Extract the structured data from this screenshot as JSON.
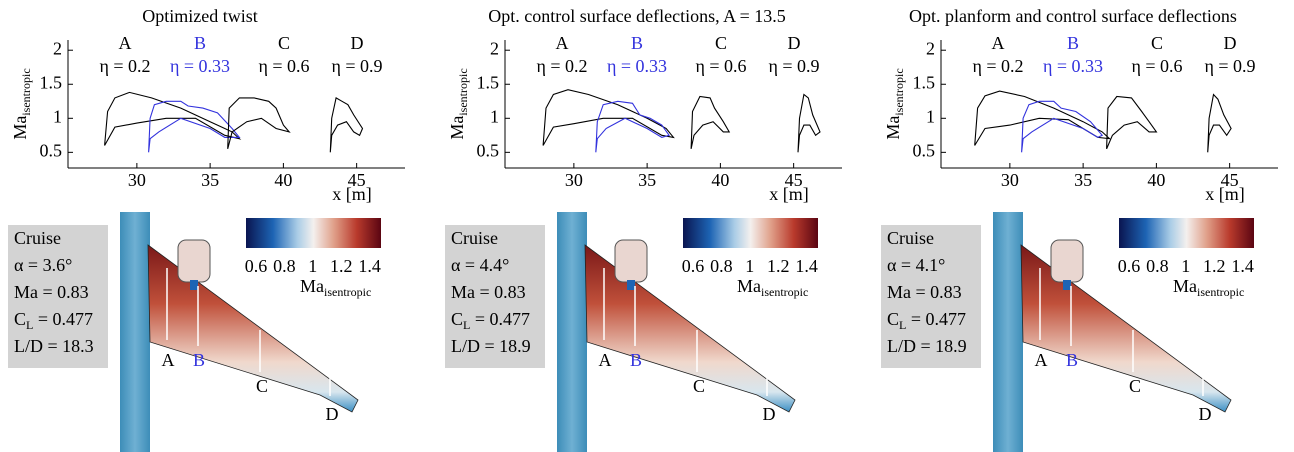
{
  "chart_data": [
    {
      "type": "line",
      "title": "Optimized twist",
      "xlabel": "x [m]",
      "ylabel": "Ma",
      "ylabel_sub": "isentropic",
      "xlim": [
        25.3,
        48.3
      ],
      "ylim": [
        0.27,
        2.15
      ],
      "xticks": [
        30,
        35,
        40,
        45
      ],
      "yticks": [
        0.5,
        1,
        1.5,
        2
      ],
      "series": [
        {
          "name": "A",
          "eta": "η = 0.2",
          "color": "#000000",
          "x": [
            27.8,
            28.0,
            28.5,
            29.5,
            31,
            33,
            35,
            36.5,
            37,
            36,
            34,
            32,
            30,
            28.5,
            27.8
          ],
          "values": [
            0.6,
            1.1,
            1.3,
            1.38,
            1.3,
            1.15,
            0.95,
            0.8,
            0.7,
            0.75,
            1.0,
            1.0,
            0.93,
            0.87,
            0.6
          ]
        },
        {
          "name": "B",
          "eta": "η = 0.33",
          "color": "#3333dd",
          "x": [
            30.8,
            30.9,
            31.2,
            32,
            33,
            33.5,
            34.5,
            35.5,
            36.5,
            37,
            36,
            35,
            33,
            31.5,
            30.9,
            30.8
          ],
          "values": [
            0.5,
            1.0,
            1.2,
            1.25,
            1.25,
            1.18,
            1.15,
            1.08,
            0.85,
            0.72,
            0.72,
            0.85,
            1.0,
            0.8,
            0.7,
            0.5
          ]
        },
        {
          "name": "C",
          "eta": "η = 0.6",
          "color": "#000000",
          "x": [
            36.2,
            36.3,
            37,
            38,
            39,
            39.5,
            40,
            40.4,
            39.5,
            38.5,
            37.5,
            36.5,
            36.2
          ],
          "values": [
            0.55,
            1.15,
            1.3,
            1.3,
            1.25,
            1.15,
            0.9,
            0.8,
            0.85,
            1.0,
            0.95,
            0.8,
            0.55
          ]
        },
        {
          "name": "D",
          "eta": "η = 0.9",
          "color": "#000000",
          "x": [
            43.2,
            43.3,
            43.6,
            44,
            44.4,
            44.8,
            45.4,
            45.2,
            44.8,
            44.3,
            43.7,
            43.3,
            43.2
          ],
          "values": [
            0.5,
            1.0,
            1.3,
            1.25,
            1.2,
            1.05,
            0.85,
            0.75,
            0.8,
            0.95,
            0.9,
            0.75,
            0.5
          ]
        }
      ]
    },
    {
      "type": "line",
      "title": "Opt. control surface deflections, A = 13.5",
      "xlabel": "x [m]",
      "ylabel": "Ma",
      "ylabel_sub": "isentropic",
      "xlim": [
        25.3,
        48.3
      ],
      "ylim": [
        0.27,
        2.15
      ],
      "xticks": [
        30,
        35,
        40,
        45
      ],
      "yticks": [
        0.5,
        1,
        1.5,
        2
      ],
      "series": [
        {
          "name": "A",
          "eta": "η = 0.2",
          "color": "#000000",
          "x": [
            27.9,
            28.1,
            28.6,
            29.6,
            31,
            33,
            35,
            36.3,
            36.8,
            36,
            34,
            32,
            30,
            28.6,
            27.9
          ],
          "values": [
            0.6,
            1.15,
            1.35,
            1.42,
            1.35,
            1.2,
            1.0,
            0.85,
            0.72,
            0.75,
            1.0,
            1.0,
            0.92,
            0.87,
            0.6
          ]
        },
        {
          "name": "B",
          "eta": "η = 0.33",
          "color": "#3333dd",
          "x": [
            31.5,
            31.6,
            32,
            33,
            34,
            34.5,
            35.2,
            36,
            36.5,
            36,
            35,
            33.5,
            32.2,
            31.6,
            31.5
          ],
          "values": [
            0.5,
            0.95,
            1.2,
            1.25,
            1.22,
            1.05,
            1.0,
            0.9,
            0.75,
            0.72,
            0.85,
            1.0,
            0.85,
            0.7,
            0.5
          ]
        },
        {
          "name": "C",
          "eta": "η = 0.6",
          "color": "#000000",
          "x": [
            38,
            38.1,
            38.6,
            39.3,
            39.6,
            40.2,
            40.6,
            40.2,
            39.5,
            38.8,
            38.2,
            38
          ],
          "values": [
            0.55,
            1.1,
            1.32,
            1.3,
            1.15,
            0.95,
            0.8,
            0.8,
            0.95,
            0.9,
            0.75,
            0.55
          ]
        },
        {
          "name": "D",
          "eta": "η = 0.9",
          "color": "#000000",
          "x": [
            45.3,
            45.4,
            45.7,
            46,
            46.3,
            46.8,
            46.5,
            46.1,
            45.7,
            45.4,
            45.3
          ],
          "values": [
            0.5,
            1.0,
            1.35,
            1.3,
            1.05,
            0.8,
            0.75,
            0.9,
            0.9,
            0.75,
            0.5
          ]
        }
      ]
    },
    {
      "type": "line",
      "title": "Opt. planform and control surface deflections",
      "xlabel": "x [m]",
      "ylabel": "Ma",
      "ylabel_sub": "isentropic",
      "xlim": [
        25.3,
        48.3
      ],
      "ylim": [
        0.27,
        2.15
      ],
      "xticks": [
        30,
        35,
        40,
        45
      ],
      "yticks": [
        0.5,
        1,
        1.5,
        2
      ],
      "series": [
        {
          "name": "A",
          "eta": "η = 0.2",
          "color": "#000000",
          "x": [
            27.6,
            27.8,
            28.3,
            29.3,
            31,
            33,
            35,
            36.3,
            36.8,
            36,
            34,
            32,
            30,
            28.3,
            27.6
          ],
          "values": [
            0.6,
            1.15,
            1.33,
            1.4,
            1.32,
            1.15,
            0.95,
            0.8,
            0.7,
            0.72,
            0.98,
            1.0,
            0.9,
            0.85,
            0.6
          ]
        },
        {
          "name": "B",
          "eta": "η = 0.33",
          "color": "#3333dd",
          "x": [
            30.8,
            30.9,
            31.3,
            32,
            33,
            33.5,
            34.5,
            35.5,
            36.3,
            36,
            35,
            33,
            31.5,
            30.9,
            30.8
          ],
          "values": [
            0.5,
            1.0,
            1.2,
            1.25,
            1.25,
            1.15,
            1.1,
            0.95,
            0.75,
            0.72,
            0.85,
            1.0,
            0.8,
            0.7,
            0.5
          ]
        },
        {
          "name": "C",
          "eta": "η = 0.6",
          "color": "#000000",
          "x": [
            36.6,
            36.7,
            37.3,
            38.3,
            39,
            39.5,
            40,
            39.5,
            38.7,
            37.8,
            37,
            36.6
          ],
          "values": [
            0.55,
            1.15,
            1.32,
            1.3,
            1.1,
            0.95,
            0.8,
            0.8,
            0.95,
            0.9,
            0.75,
            0.55
          ]
        },
        {
          "name": "D",
          "eta": "η = 0.9",
          "color": "#000000",
          "x": [
            43.5,
            43.6,
            43.9,
            44.2,
            44.6,
            45.1,
            44.8,
            44.3,
            43.9,
            43.6,
            43.5
          ],
          "values": [
            0.5,
            1.0,
            1.35,
            1.28,
            1.05,
            0.85,
            0.75,
            0.9,
            0.9,
            0.75,
            0.5
          ]
        }
      ]
    }
  ],
  "renders": [
    {
      "cruise": [
        {
          "text": "Cruise"
        },
        {
          "text": "α = 3.6°"
        },
        {
          "text": "Ma = 0.83"
        },
        {
          "main": "C",
          "sub": "L",
          "rest": " = 0.477"
        },
        {
          "text": "L/D = 18.3"
        }
      ],
      "colorbar": {
        "clim": [
          0.53,
          1.48
        ],
        "ticks": [
          0.6,
          0.8,
          1,
          1.2,
          1.4
        ],
        "label": "Ma",
        "label_sub": "isentropic"
      }
    },
    {
      "cruise": [
        {
          "text": "Cruise"
        },
        {
          "text": "α = 4.4°"
        },
        {
          "text": "Ma = 0.83"
        },
        {
          "main": "C",
          "sub": "L",
          "rest": " = 0.477"
        },
        {
          "text": "L/D = 18.9"
        }
      ],
      "colorbar": {
        "clim": [
          0.53,
          1.48
        ],
        "ticks": [
          0.6,
          0.8,
          1,
          1.2,
          1.4
        ],
        "label": "Ma",
        "label_sub": "isentropic"
      }
    },
    {
      "cruise": [
        {
          "text": "Cruise"
        },
        {
          "text": "α = 4.1°"
        },
        {
          "text": "Ma = 0.83"
        },
        {
          "main": "C",
          "sub": "L",
          "rest": " = 0.477"
        },
        {
          "text": "L/D = 18.9"
        }
      ],
      "colorbar": {
        "clim": [
          0.53,
          1.48
        ],
        "ticks": [
          0.6,
          0.8,
          1,
          1.2,
          1.4
        ],
        "label": "Ma",
        "label_sub": "isentropic"
      }
    }
  ]
}
